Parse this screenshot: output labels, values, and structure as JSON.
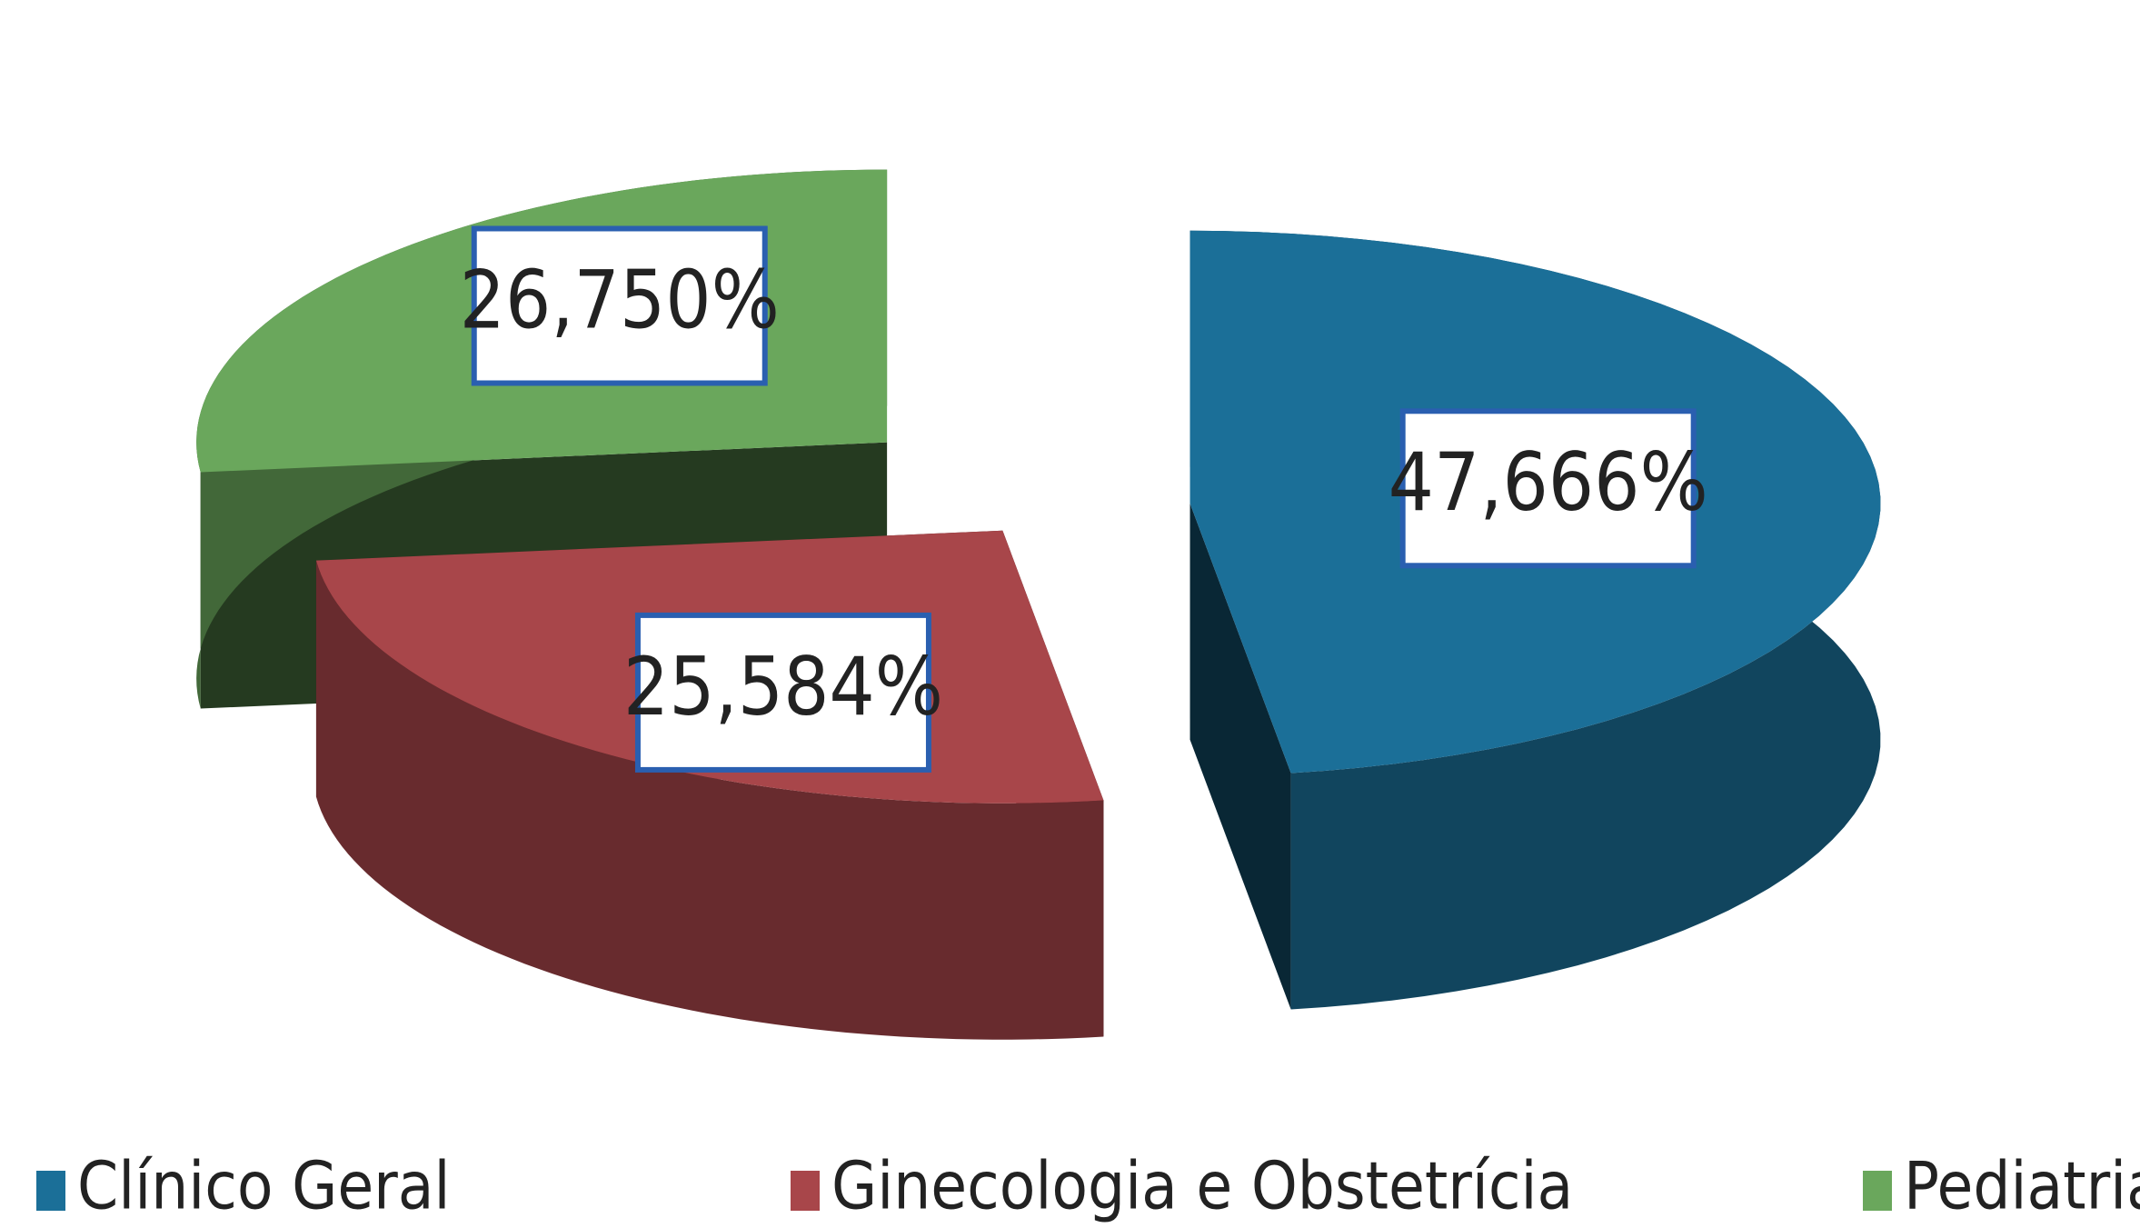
{
  "chart_data": {
    "type": "pie3d",
    "categories": [
      "Clínico Geral",
      "Ginecologia e Obstetrícia",
      "Pediatria"
    ],
    "values": [
      47.666,
      25.584,
      26.75
    ],
    "value_labels": [
      "47,666%",
      "25,584%",
      "26,750%"
    ],
    "colors": [
      "#1b6f98",
      "#a8464a",
      "#6aa75c"
    ],
    "legend": "bottom"
  }
}
